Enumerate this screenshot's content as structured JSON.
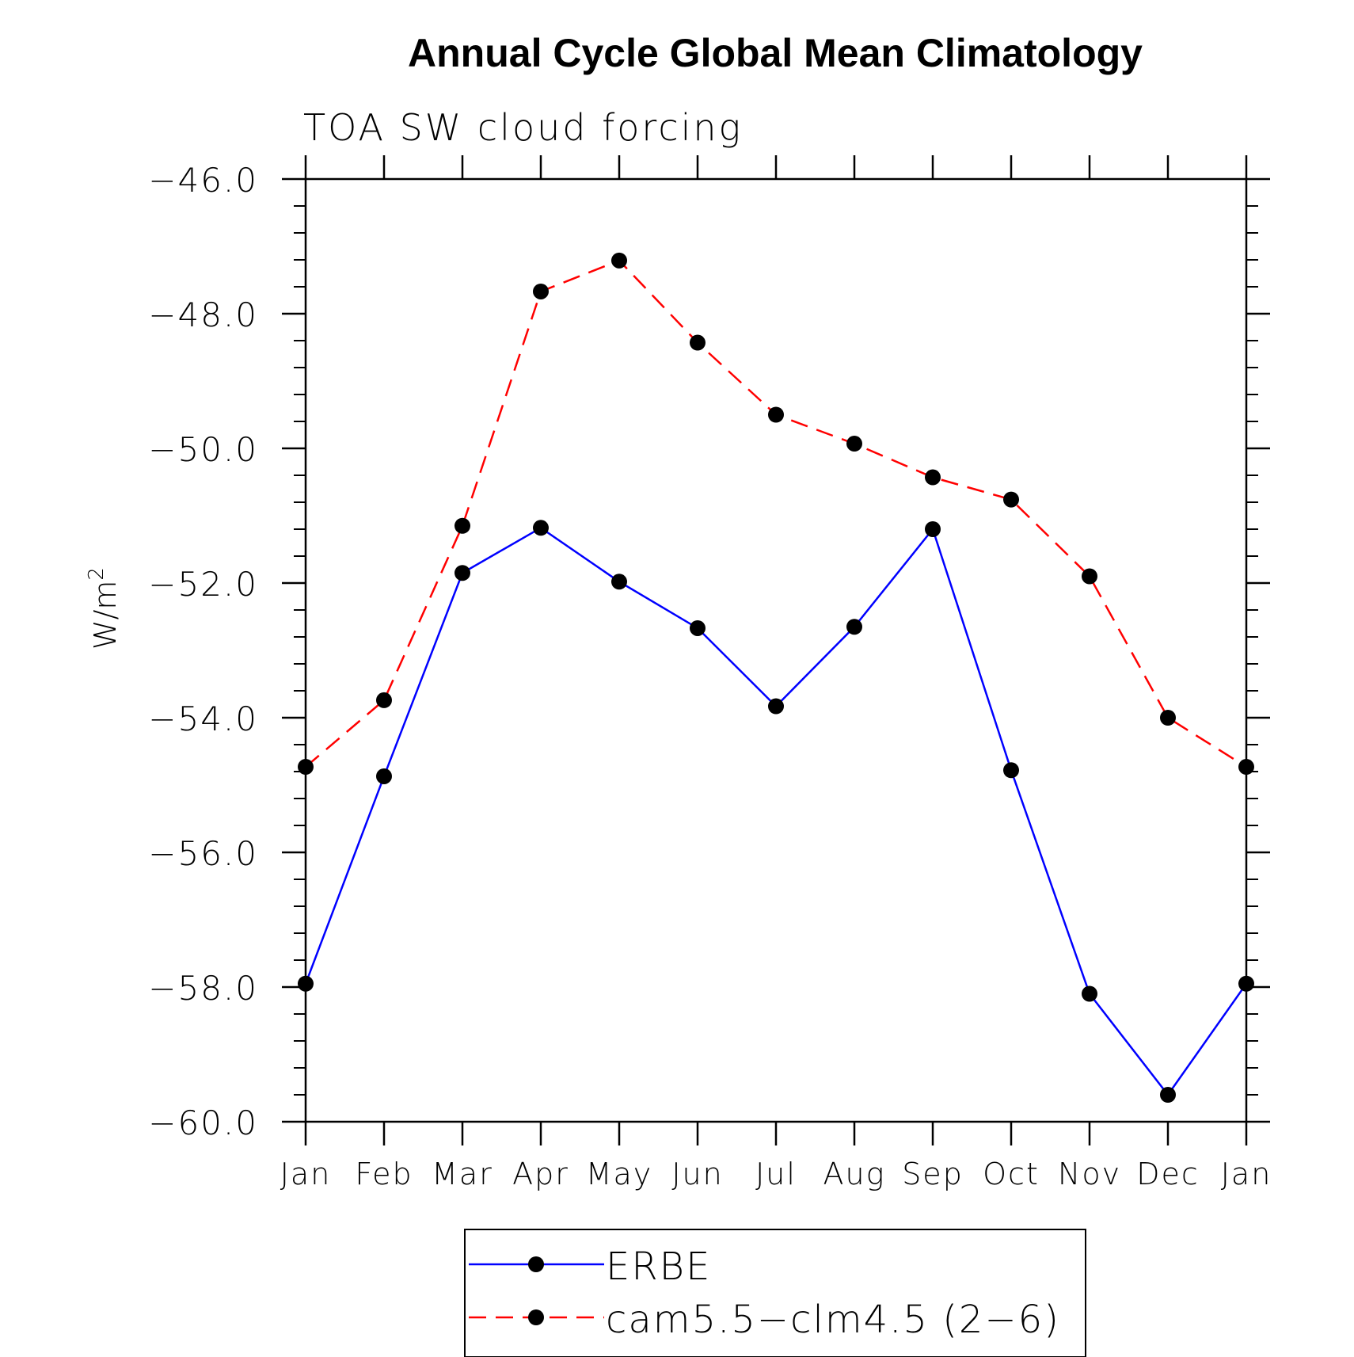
{
  "chart_data": {
    "type": "line",
    "title": "Annual Cycle Global Mean Climatology",
    "subtitle": "TOA SW cloud forcing",
    "xlabel": "",
    "ylabel": "W/m",
    "ylabel_superscript": "2",
    "categories": [
      "Jan",
      "Feb",
      "Mar",
      "Apr",
      "May",
      "Jun",
      "Jul",
      "Aug",
      "Sep",
      "Oct",
      "Nov",
      "Dec",
      "Jan"
    ],
    "ylim": [
      -60.0,
      -46.0
    ],
    "yticks": [
      "-46.0",
      "-48.0",
      "-50.0",
      "-52.0",
      "-54.0",
      "-56.0",
      "-58.0",
      "-60.0"
    ],
    "grid": false,
    "legend_position": "bottom",
    "series": [
      {
        "name": "ERBE",
        "color": "#0000ff",
        "dash": "solid",
        "marker": "filled-circle",
        "values": [
          -57.95,
          -54.87,
          -51.85,
          -51.18,
          -51.98,
          -52.67,
          -53.83,
          -52.65,
          -51.2,
          -54.78,
          -58.1,
          -59.6,
          -57.95
        ]
      },
      {
        "name": "cam5.5-clm4.5 (2-6)",
        "color": "#ff0000",
        "dash": "dashed",
        "marker": "filled-circle",
        "values": [
          -54.73,
          -53.74,
          -51.15,
          -47.67,
          -47.21,
          -48.43,
          -49.5,
          -49.93,
          -50.43,
          -50.76,
          -51.9,
          -54.0,
          -54.73
        ]
      }
    ],
    "marker_color": "#000000",
    "axis_color": "#000000"
  }
}
